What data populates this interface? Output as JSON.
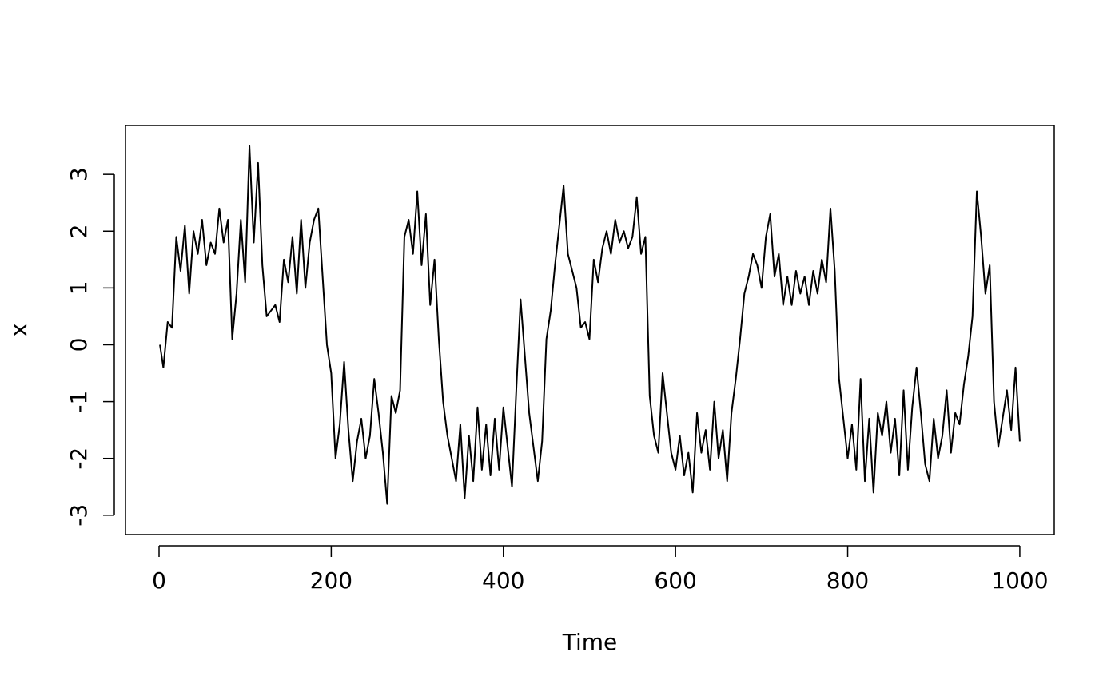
{
  "chart_data": {
    "type": "line",
    "xlabel": "Time",
    "ylabel": "x",
    "color": "#000000",
    "xlim": [
      -39,
      1040
    ],
    "ylim": [
      -3.34,
      3.86
    ],
    "xticks": [
      0,
      200,
      400,
      600,
      800,
      1000
    ],
    "yticks": [
      -3,
      -2,
      -1,
      0,
      1,
      2,
      3
    ],
    "grid": false,
    "x": [
      1,
      5,
      10,
      15,
      20,
      25,
      30,
      35,
      40,
      45,
      50,
      55,
      60,
      65,
      70,
      75,
      80,
      85,
      90,
      95,
      100,
      105,
      110,
      115,
      120,
      125,
      130,
      135,
      140,
      145,
      150,
      155,
      160,
      165,
      170,
      175,
      180,
      185,
      190,
      195,
      200,
      205,
      210,
      215,
      220,
      225,
      230,
      235,
      240,
      245,
      250,
      255,
      260,
      265,
      270,
      275,
      280,
      285,
      290,
      295,
      300,
      305,
      310,
      315,
      320,
      325,
      330,
      335,
      340,
      345,
      350,
      355,
      360,
      365,
      370,
      375,
      380,
      385,
      390,
      395,
      400,
      405,
      410,
      415,
      420,
      425,
      430,
      435,
      440,
      445,
      450,
      455,
      460,
      465,
      470,
      475,
      480,
      485,
      490,
      495,
      500,
      505,
      510,
      515,
      520,
      525,
      530,
      535,
      540,
      545,
      550,
      555,
      560,
      565,
      570,
      575,
      580,
      585,
      590,
      595,
      600,
      605,
      610,
      615,
      620,
      625,
      630,
      635,
      640,
      645,
      650,
      655,
      660,
      665,
      670,
      675,
      680,
      685,
      690,
      695,
      700,
      705,
      710,
      715,
      720,
      725,
      730,
      735,
      740,
      745,
      750,
      755,
      760,
      765,
      770,
      775,
      780,
      785,
      790,
      795,
      800,
      805,
      810,
      815,
      820,
      825,
      830,
      835,
      840,
      845,
      850,
      855,
      860,
      865,
      870,
      875,
      880,
      885,
      890,
      895,
      900,
      905,
      910,
      915,
      920,
      925,
      930,
      935,
      940,
      945,
      950,
      955,
      960,
      965,
      970,
      975,
      980,
      985,
      990,
      995,
      1000
    ],
    "values": [
      0,
      -0.4,
      0.4,
      0.3,
      1.9,
      1.3,
      2.1,
      0.9,
      2.0,
      1.6,
      2.2,
      1.4,
      1.8,
      1.6,
      2.4,
      1.8,
      2.2,
      0.1,
      0.9,
      2.2,
      1.1,
      3.5,
      1.8,
      3.2,
      1.4,
      0.5,
      0.6,
      0.7,
      0.4,
      1.5,
      1.1,
      1.9,
      0.9,
      2.2,
      1.0,
      1.8,
      2.2,
      2.4,
      1.2,
      0.0,
      -0.5,
      -2.0,
      -1.4,
      -0.3,
      -1.5,
      -2.4,
      -1.7,
      -1.3,
      -2.0,
      -1.6,
      -0.6,
      -1.2,
      -1.9,
      -2.8,
      -0.9,
      -1.2,
      -0.8,
      1.9,
      2.2,
      1.6,
      2.7,
      1.4,
      2.3,
      0.7,
      1.5,
      0.1,
      -1.0,
      -1.6,
      -2.0,
      -2.4,
      -1.4,
      -2.7,
      -1.6,
      -2.4,
      -1.1,
      -2.2,
      -1.4,
      -2.3,
      -1.3,
      -2.2,
      -1.1,
      -1.8,
      -2.5,
      -0.8,
      0.8,
      -0.2,
      -1.2,
      -1.8,
      -2.4,
      -1.7,
      0.1,
      0.6,
      1.4,
      2.1,
      2.8,
      1.6,
      1.3,
      1.0,
      0.3,
      0.4,
      0.1,
      1.5,
      1.1,
      1.7,
      2.0,
      1.6,
      2.2,
      1.8,
      2.0,
      1.7,
      1.9,
      2.6,
      1.6,
      1.9,
      -0.9,
      -1.6,
      -1.9,
      -0.5,
      -1.2,
      -1.9,
      -2.2,
      -1.6,
      -2.3,
      -1.9,
      -2.6,
      -1.2,
      -1.9,
      -1.5,
      -2.2,
      -1.0,
      -2.0,
      -1.5,
      -2.4,
      -1.2,
      -0.6,
      0.1,
      0.9,
      1.2,
      1.6,
      1.4,
      1.0,
      1.9,
      2.3,
      1.2,
      1.6,
      0.7,
      1.2,
      0.7,
      1.3,
      0.9,
      1.2,
      0.7,
      1.3,
      0.9,
      1.5,
      1.1,
      2.4,
      1.3,
      -0.6,
      -1.3,
      -2.0,
      -1.4,
      -2.2,
      -0.6,
      -2.4,
      -1.3,
      -2.6,
      -1.2,
      -1.6,
      -1.0,
      -1.9,
      -1.3,
      -2.3,
      -0.8,
      -2.2,
      -1.1,
      -0.4,
      -1.2,
      -2.1,
      -2.4,
      -1.3,
      -2.0,
      -1.6,
      -0.8,
      -1.9,
      -1.2,
      -1.4,
      -0.7,
      -0.2,
      0.5,
      2.7,
      1.9,
      0.9,
      1.4,
      -1.0,
      -1.8,
      -1.3,
      -0.8,
      -1.5,
      -0.4,
      -1.7
    ]
  }
}
